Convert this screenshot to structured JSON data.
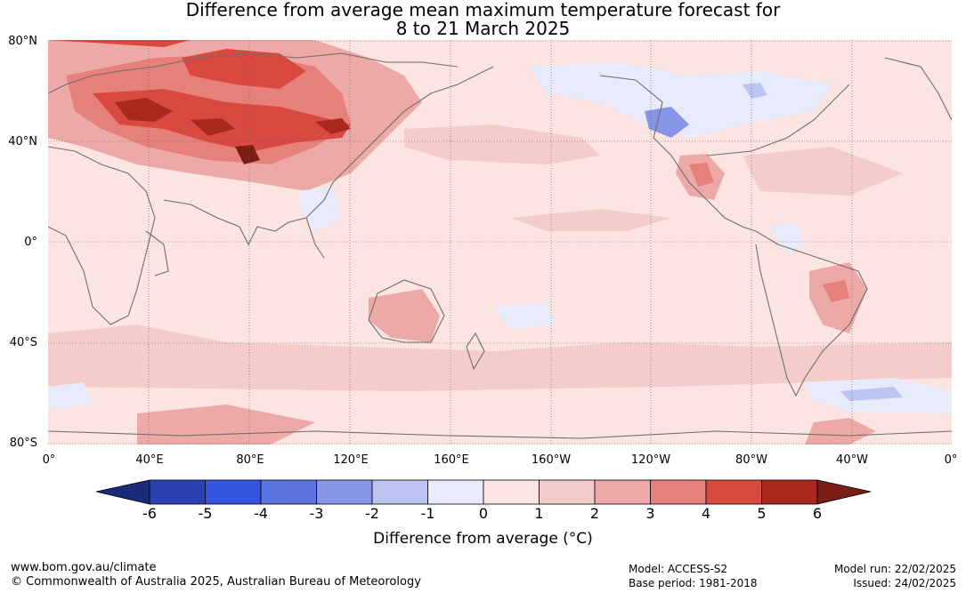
{
  "title": {
    "line1": "Difference from average mean maximum temperature forecast for",
    "line2": "8 to 21 March 2025"
  },
  "map": {
    "lat_labels": [
      "80°N",
      "40°N",
      "0°",
      "40°S",
      "80°S"
    ],
    "lon_labels": [
      "0°",
      "40°E",
      "80°E",
      "120°E",
      "160°E",
      "160°W",
      "120°W",
      "80°W",
      "40°W",
      "0°"
    ],
    "colors": {
      "ocean_base": "#fbe4e2",
      "land_line": "#6e6e6e",
      "grid": "#555555"
    }
  },
  "colorbar": {
    "ticks": [
      "-6",
      "-5",
      "-4",
      "-3",
      "-2",
      "-1",
      "0",
      "1",
      "2",
      "3",
      "4",
      "5",
      "6"
    ],
    "label": "Difference from average (°C)",
    "colors": [
      "#1c2a7a",
      "#2a41b3",
      "#3555e0",
      "#5b74e0",
      "#8795e6",
      "#bcc5f2",
      "#e8ebfb",
      "#fbe4e2",
      "#f4cdca",
      "#eda9a5",
      "#e6807a",
      "#d84a3f",
      "#a9291f",
      "#7a1e17"
    ]
  },
  "footer": {
    "url": "www.bom.gov.au/climate",
    "copyright": "© Commonwealth of Australia 2025, Australian Bureau of Meteorology",
    "model": "Model: ACCESS-S2",
    "base_period": "Base period: 1981-2018",
    "model_run": "Model run: 22/02/2025",
    "issued": "Issued: 24/02/2025"
  }
}
